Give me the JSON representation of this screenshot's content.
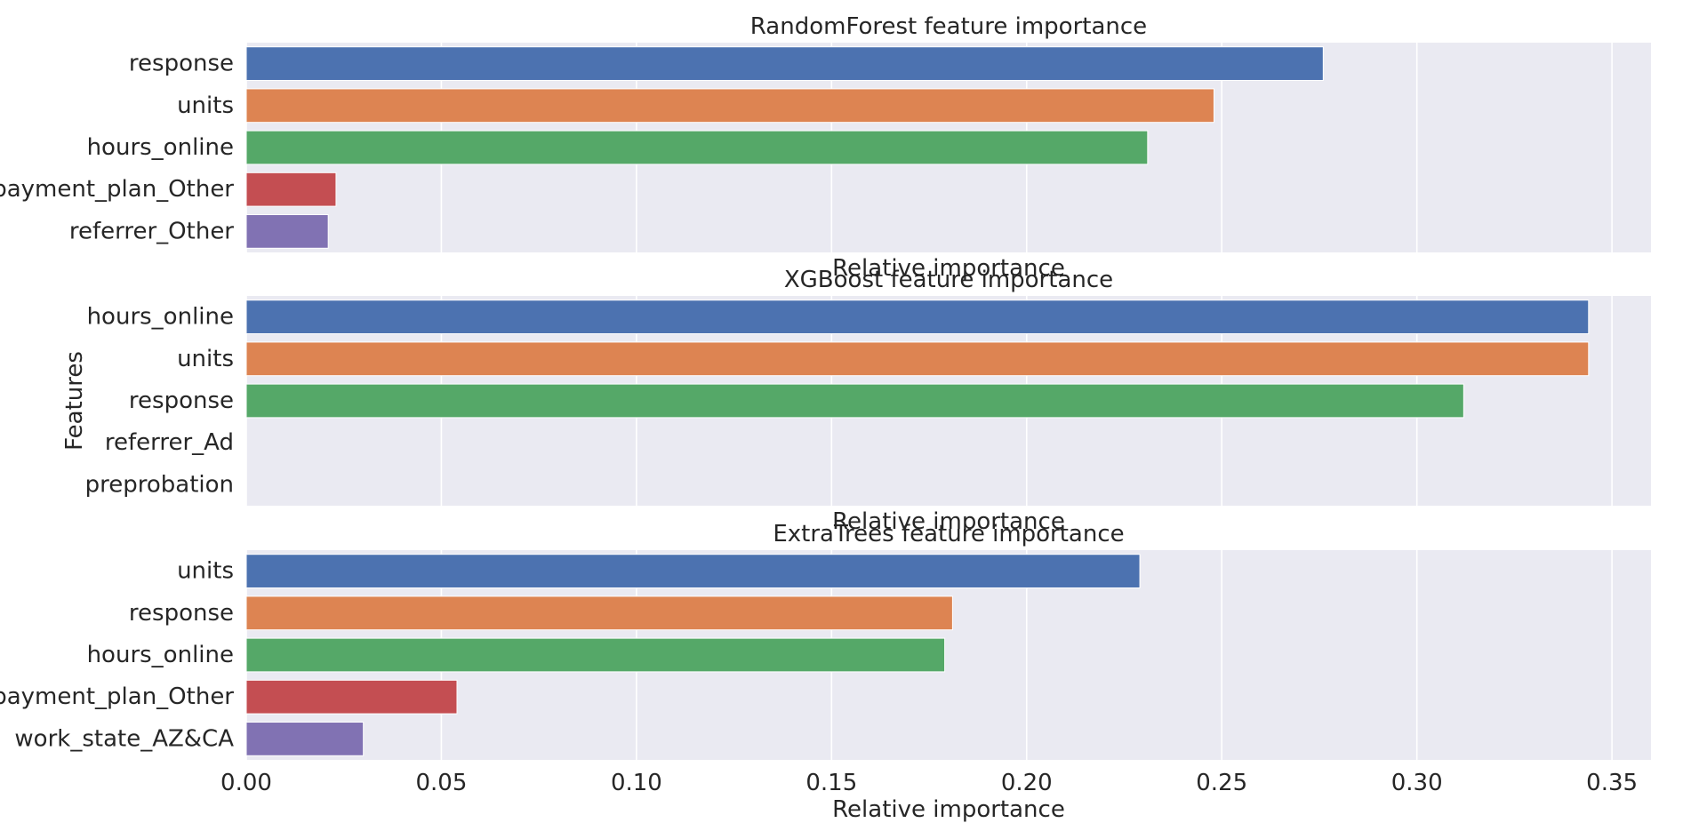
{
  "chart_data": [
    {
      "type": "bar",
      "orientation": "horizontal",
      "title": "RandomForest feature importance",
      "xlabel": "Relative importance",
      "ylabel": "",
      "categories": [
        "response",
        "units",
        "hours_online",
        "payment_plan_Other",
        "referrer_Other"
      ],
      "values": [
        0.276,
        0.248,
        0.231,
        0.023,
        0.021
      ],
      "xlim": [
        0,
        0.36
      ],
      "grid": true,
      "show_xticklabels": false
    },
    {
      "type": "bar",
      "orientation": "horizontal",
      "title": "XGBoost feature importance",
      "xlabel": "Relative importance",
      "ylabel": "Features",
      "categories": [
        "hours_online",
        "units",
        "response",
        "referrer_Ad",
        "preprobation"
      ],
      "values": [
        0.344,
        0.344,
        0.312,
        0.0,
        0.0
      ],
      "xlim": [
        0,
        0.36
      ],
      "grid": true,
      "show_xticklabels": false
    },
    {
      "type": "bar",
      "orientation": "horizontal",
      "title": "ExtraTrees feature importance",
      "xlabel": "Relative importance",
      "ylabel": "",
      "categories": [
        "units",
        "response",
        "hours_online",
        "payment_plan_Other",
        "work_state_AZ&CA"
      ],
      "values": [
        0.229,
        0.181,
        0.179,
        0.054,
        0.03
      ],
      "xlim": [
        0,
        0.36
      ],
      "grid": true,
      "show_xticklabels": true,
      "xticks": [
        "0.00",
        "0.05",
        "0.10",
        "0.15",
        "0.20",
        "0.25",
        "0.30",
        "0.35"
      ]
    }
  ],
  "colors": {
    "background": "#eaeaf2",
    "grid": "#ffffff",
    "palette": [
      "#4c72b0",
      "#dd8452",
      "#55a868",
      "#c44e52",
      "#8172b3"
    ]
  }
}
